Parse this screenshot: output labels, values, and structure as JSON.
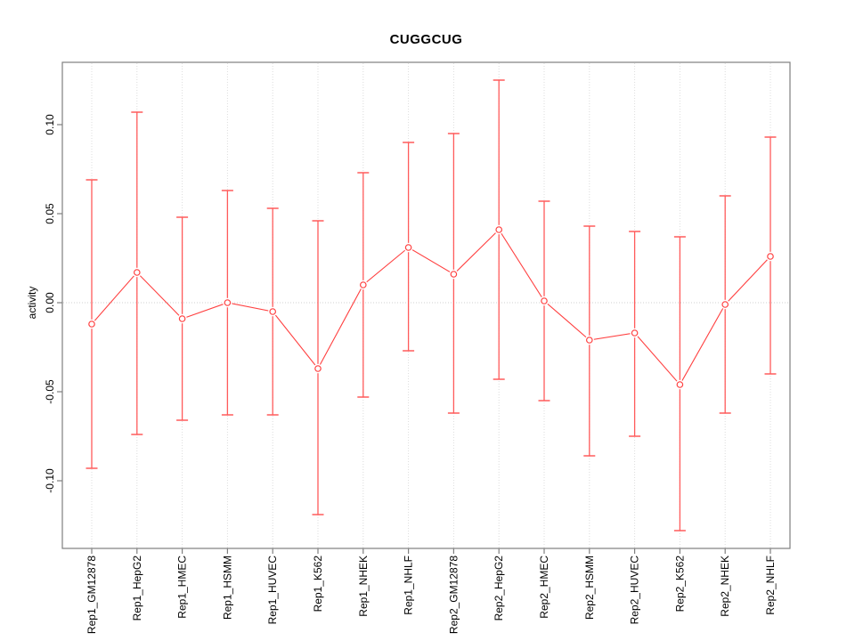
{
  "title": "CUGGCUG",
  "axes": {
    "y_label": "activity"
  },
  "colors": {
    "point_line": "#ff4040",
    "error_bar": "#ff5b5b",
    "grid": "#dcdcdc",
    "zero_line": "#cfcfcf",
    "axis": "#7f7f7f",
    "tick_text": "#000000"
  },
  "chart_data": {
    "type": "scatter",
    "title": "CUGGCUG",
    "xlabel": "",
    "ylabel": "activity",
    "categories": [
      "Rep1_GM12878",
      "Rep1_HepG2",
      "Rep1_HMEC",
      "Rep1_HSMM",
      "Rep1_HUVEC",
      "Rep1_K562",
      "Rep1_NHEK",
      "Rep1_NHLF",
      "Rep2_GM12878",
      "Rep2_HepG2",
      "Rep2_HMEC",
      "Rep2_HSMM",
      "Rep2_HUVEC",
      "Rep2_K562",
      "Rep2_NHEK",
      "Rep2_NHLF"
    ],
    "series": [
      {
        "name": "activity",
        "marker": "open-circle",
        "connected": true,
        "values": [
          -0.012,
          0.017,
          -0.009,
          0.0,
          -0.005,
          -0.037,
          0.01,
          0.031,
          0.016,
          0.041,
          0.001,
          -0.021,
          -0.017,
          -0.046,
          -0.001,
          0.026
        ],
        "error_high": [
          0.069,
          0.107,
          0.048,
          0.063,
          0.053,
          0.046,
          0.073,
          0.09,
          0.095,
          0.125,
          0.057,
          0.043,
          0.04,
          0.037,
          0.06,
          0.093
        ],
        "error_low": [
          -0.093,
          -0.074,
          -0.066,
          -0.063,
          -0.063,
          -0.119,
          -0.053,
          -0.027,
          -0.062,
          -0.043,
          -0.055,
          -0.086,
          -0.075,
          -0.128,
          -0.062,
          -0.04
        ]
      }
    ],
    "ylim": [
      -0.138,
      0.135
    ],
    "yticks": [
      0.1,
      0.05,
      0.0,
      -0.05,
      -0.1
    ],
    "grid": "vertical dotted gridline per category; dotted horizontal line at y=0",
    "legend_position": "none"
  }
}
